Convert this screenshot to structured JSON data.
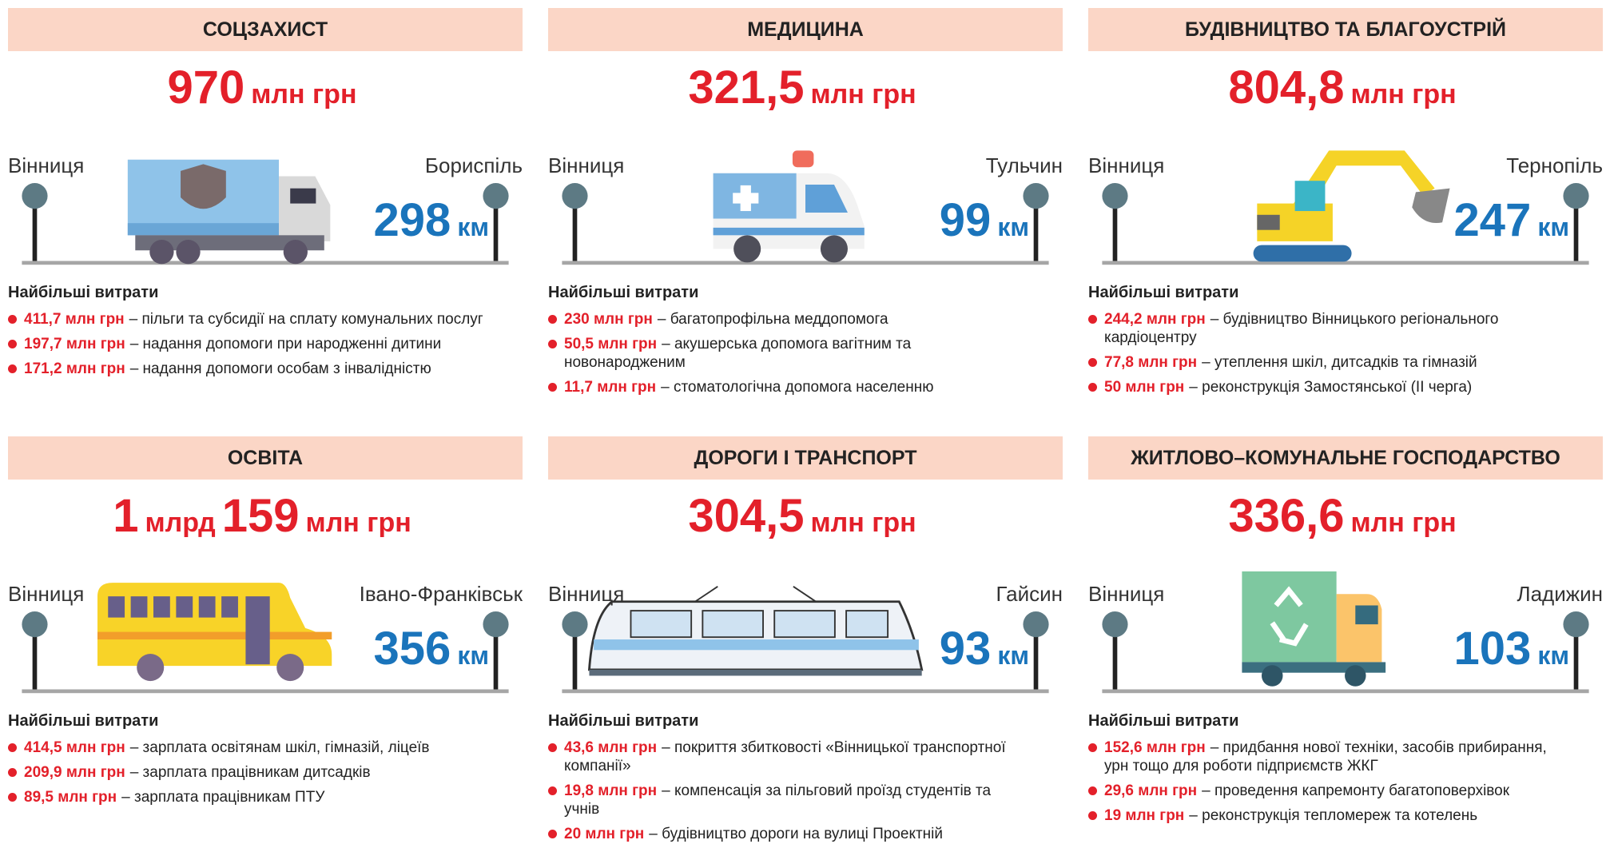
{
  "panels": [
    {
      "title": "СОЦЗАХИСТ",
      "amount": [
        "970",
        "млн грн"
      ],
      "from": "Вінниця",
      "to": "Бориспіль",
      "distance": {
        "value": "298",
        "unit": "км"
      },
      "expenses_title": "Найбільші витрати",
      "items": [
        {
          "amount": "411,7 млн грн",
          "text": "– пільги та субсидії на сплату комунальних послуг"
        },
        {
          "amount": "197,7 млн грн",
          "text": "– надання допомоги при народженні дитини"
        },
        {
          "amount": "171,2 млн грн",
          "text": "– надання допомоги особам з інвалідністю"
        }
      ]
    },
    {
      "title": "МЕДИЦИНА",
      "amount": [
        "321,5",
        "млн грн"
      ],
      "from": "Вінниця",
      "to": "Тульчин",
      "distance": {
        "value": "99",
        "unit": "км"
      },
      "expenses_title": "Найбільші витрати",
      "items": [
        {
          "amount": "230 млн грн",
          "text": "– багатопрофільна меддопомога"
        },
        {
          "amount": "50,5 млн грн",
          "text": "– акушерська допомога вагітним та новонародженим"
        },
        {
          "amount": "11,7 млн грн",
          "text": "– стоматологічна допомога населенню"
        }
      ]
    },
    {
      "title": "БУДІВНИЦТВО ТА БЛАГОУСТРІЙ",
      "amount": [
        "804,8",
        "млн грн"
      ],
      "from": "Вінниця",
      "to": "Тернопіль",
      "distance": {
        "value": "247",
        "unit": "км"
      },
      "expenses_title": "Найбільші витрати",
      "items": [
        {
          "amount": "244,2 млн грн",
          "text": "– будівництво Вінницького регіонального кардіоцентру"
        },
        {
          "amount": "77,8 млн грн",
          "text": "– утеплення шкіл, дитсадків та гімназій"
        },
        {
          "amount": "50 млн грн",
          "text": "– реконструкція Замостянської (ІІ черга)"
        }
      ]
    },
    {
      "title": "ОСВІТА",
      "amount": [
        "1",
        "млрд",
        "159",
        "млн грн"
      ],
      "from": "Вінниця",
      "to": "Івано-Франківськ",
      "distance": {
        "value": "356",
        "unit": "км"
      },
      "expenses_title": "Найбільші витрати",
      "items": [
        {
          "amount": "414,5 млн грн",
          "text": "– зарплата освітянам шкіл, гімназій, ліцеїв"
        },
        {
          "amount": "209,9 млн грн",
          "text": "– зарплата працівникам дитсадків"
        },
        {
          "amount": "89,5 млн грн",
          "text": "– зарплата працівникам ПТУ"
        }
      ]
    },
    {
      "title": "ДОРОГИ І ТРАНСПОРТ",
      "amount": [
        "304,5",
        "млн грн"
      ],
      "from": "Вінниця",
      "to": "Гайсин",
      "distance": {
        "value": "93",
        "unit": "км"
      },
      "expenses_title": "Найбільші витрати",
      "items": [
        {
          "amount": "43,6 млн грн",
          "text": "– покриття збитковості «Вінницької транспортної компанії»"
        },
        {
          "amount": "19,8 млн грн",
          "text": "– компенсація за пільговий проїзд студентів та учнів"
        },
        {
          "amount": "20 млн грн",
          "text": "– будівництво дороги на вулиці Проектній"
        }
      ]
    },
    {
      "title": "ЖИТЛОВО–КОМУНАЛЬНЕ ГОСПОДАРСТВО",
      "amount": [
        "336,6",
        "млн грн"
      ],
      "from": "Вінниця",
      "to": "Ладижин",
      "distance": {
        "value": "103",
        "unit": "км"
      },
      "expenses_title": "Найбільші витрати",
      "items": [
        {
          "amount": "152,6 млн грн",
          "text": "– придбання нової техніки, засобів прибирання, урн тощо для роботи підприємств ЖКГ"
        },
        {
          "amount": "29,6 млн грн",
          "text": "– проведення капремонту багатоповерхівок"
        },
        {
          "amount": "19 млн грн",
          "text": "– реконструкція тепломереж та котелень"
        }
      ]
    }
  ]
}
